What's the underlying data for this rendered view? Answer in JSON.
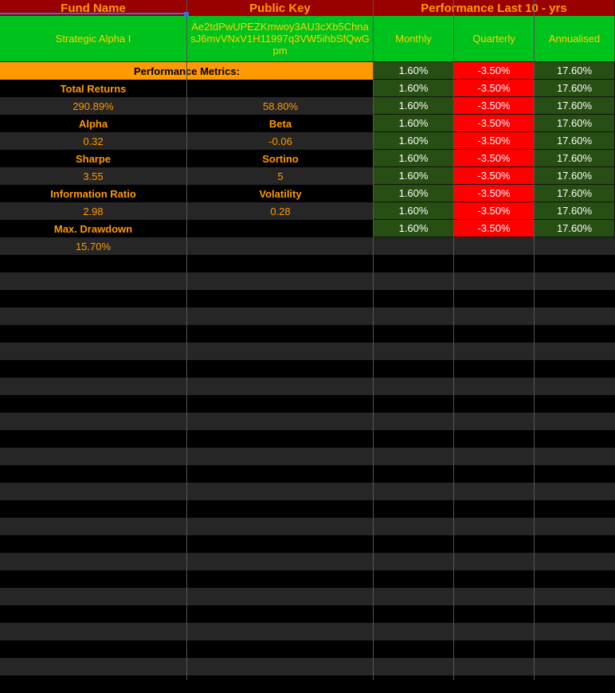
{
  "header": {
    "fund_name_label": "Fund Name",
    "public_key_label": "Public Key",
    "performance_label": "Performance Last 10 - yrs"
  },
  "fund": {
    "name": "Strategic Alpha I",
    "public_key": "Ae2tdPwUPEZKmwoy3AU3cXb5ChnasJ6mvVNxV1H11997q3VW5ihbSfQwGpm"
  },
  "performance_headers": {
    "monthly": "Monthly",
    "quarterly": "Quarterly",
    "annualised": "Annualised"
  },
  "metrics_title": "Performance Metrics:",
  "metrics": [
    {
      "left": "Total Returns",
      "right": "",
      "type": "label"
    },
    {
      "left": "290.89%",
      "right": "58.80%",
      "type": "value"
    },
    {
      "left": "Alpha",
      "right": "Beta",
      "type": "label"
    },
    {
      "left": "0.32",
      "right": "-0.06",
      "type": "value"
    },
    {
      "left": "Sharpe",
      "right": "Sortino",
      "type": "label"
    },
    {
      "left": "3.55",
      "right": "5",
      "type": "value"
    },
    {
      "left": "Information Ratio",
      "right": "Volatility",
      "type": "label"
    },
    {
      "left": "2.98",
      "right": "0.28",
      "type": "value"
    },
    {
      "left": "Max. Drawdown",
      "right": "",
      "type": "label"
    },
    {
      "left": "15.70%",
      "right": "",
      "type": "value"
    }
  ],
  "performance_rows": [
    {
      "monthly": "1.60%",
      "quarterly": "-3.50%",
      "annualised": "17.60%"
    },
    {
      "monthly": "1.60%",
      "quarterly": "-3.50%",
      "annualised": "17.60%"
    },
    {
      "monthly": "1.60%",
      "quarterly": "-3.50%",
      "annualised": "17.60%"
    },
    {
      "monthly": "1.60%",
      "quarterly": "-3.50%",
      "annualised": "17.60%"
    },
    {
      "monthly": "1.60%",
      "quarterly": "-3.50%",
      "annualised": "17.60%"
    },
    {
      "monthly": "1.60%",
      "quarterly": "-3.50%",
      "annualised": "17.60%"
    },
    {
      "monthly": "1.60%",
      "quarterly": "-3.50%",
      "annualised": "17.60%"
    },
    {
      "monthly": "1.60%",
      "quarterly": "-3.50%",
      "annualised": "17.60%"
    },
    {
      "monthly": "1.60%",
      "quarterly": "-3.50%",
      "annualised": "17.60%"
    },
    {
      "monthly": "1.60%",
      "quarterly": "-3.50%",
      "annualised": "17.60%"
    }
  ],
  "colors": {
    "header_bg": "#990000",
    "header_text": "#ff9900",
    "fund_bg": "#00c21c",
    "fund_text": "#ffd200",
    "metrics_bar": "#ff9900",
    "positive_bg": "#274e13",
    "negative_bg": "#ff0000"
  }
}
